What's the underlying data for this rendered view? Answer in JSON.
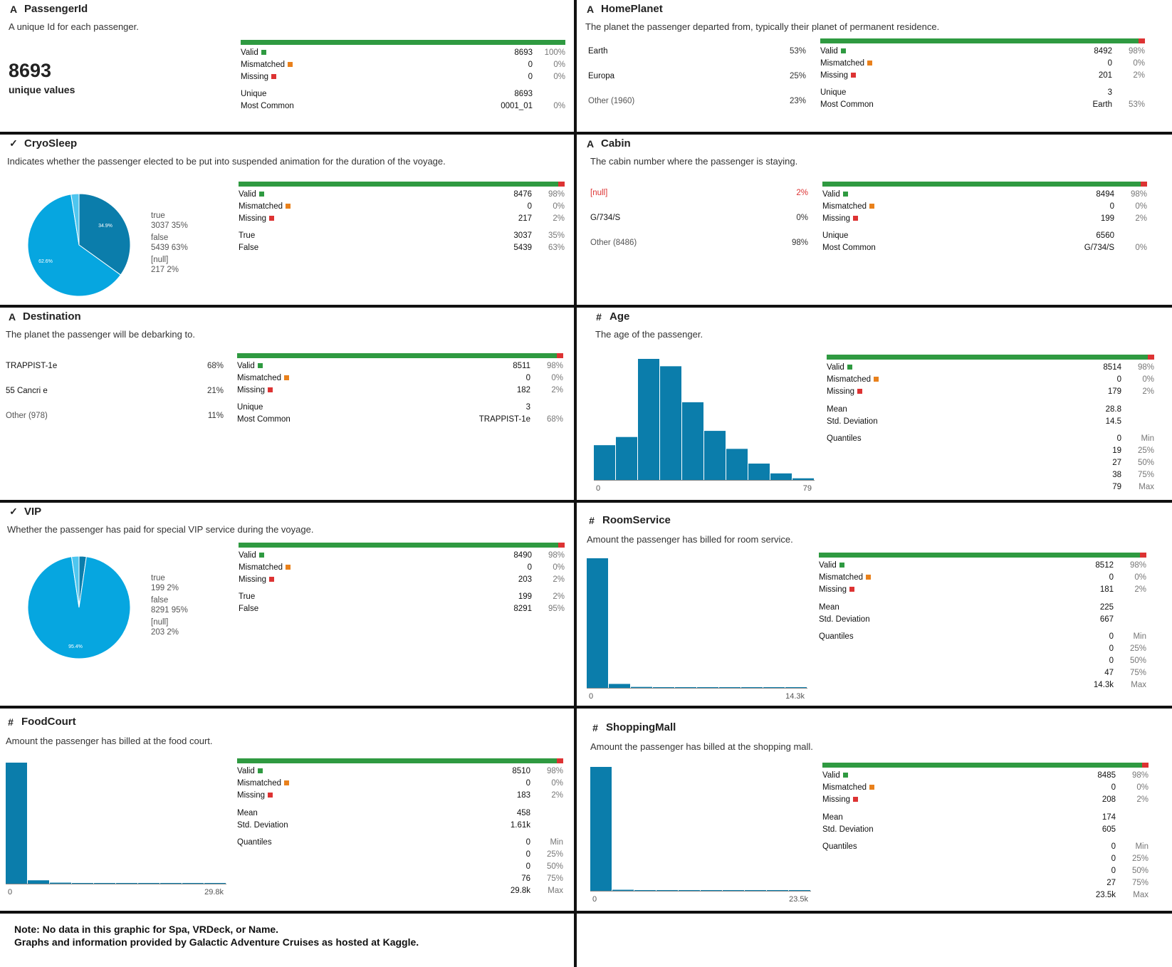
{
  "colors": {
    "valid": "#2f9a41",
    "mismatched": "#e9811c",
    "missing": "#dd3333",
    "hist": "#0b7dab",
    "pie_dark": "#0b7dab",
    "pie_light": "#06a6e0"
  },
  "labels": {
    "valid": "Valid",
    "mismatched": "Mismatched",
    "missing": "Missing",
    "unique": "Unique",
    "most_common": "Most Common",
    "mean": "Mean",
    "std": "Std. Deviation",
    "quantiles": "Quantiles",
    "true": "True",
    "false": "False"
  },
  "cards": {
    "passengerid": {
      "icon": "A",
      "title": "PassengerId",
      "desc": "A unique Id for each passenger.",
      "big": "8693",
      "big_sub": "unique values",
      "valid": "8693",
      "valid_pct": "100%",
      "mismatched": "0",
      "mismatched_pct": "0%",
      "missing": "0",
      "missing_pct": "0%",
      "unique": "8693",
      "most_common": "0001_01",
      "most_common_pct": "0%",
      "valid_fraction": 1.0
    },
    "homeplanet": {
      "icon": "A",
      "title": "HomePlanet",
      "desc": "The planet the passenger departed from, typically their planet of permanent residence.",
      "categories": [
        {
          "label": "Earth",
          "pct": "53%"
        },
        {
          "label": "Europa",
          "pct": "25%"
        },
        {
          "label": "Other (1960)",
          "pct": "23%"
        }
      ],
      "valid": "8492",
      "valid_pct": "98%",
      "mismatched": "0",
      "mismatched_pct": "0%",
      "missing": "201",
      "missing_pct": "2%",
      "unique": "3",
      "most_common": "Earth",
      "most_common_pct": "53%",
      "valid_fraction": 0.98
    },
    "cryosleep": {
      "icon": "✓",
      "title": "CryoSleep",
      "desc": "Indicates whether the passenger elected to be put into suspended animation for the duration of the voyage.",
      "legend": [
        {
          "label": "true",
          "value": "3037  35%"
        },
        {
          "label": "false",
          "value": "5439  63%"
        },
        {
          "label": "[null]",
          "value": "217  2%"
        }
      ],
      "pie_labels": [
        "34.9%",
        "62.6%"
      ],
      "valid": "8476",
      "valid_pct": "98%",
      "mismatched": "0",
      "mismatched_pct": "0%",
      "missing": "217",
      "missing_pct": "2%",
      "true_count": "3037",
      "true_pct": "35%",
      "false_count": "5439",
      "false_pct": "63%",
      "valid_fraction": 0.98
    },
    "cabin": {
      "icon": "A",
      "title": "Cabin",
      "desc": "The cabin number where the passenger is staying.",
      "categories": [
        {
          "label": "[null]",
          "pct": "2%"
        },
        {
          "label": "G/734/S",
          "pct": "0%"
        },
        {
          "label": "Other (8486)",
          "pct": "98%"
        }
      ],
      "valid": "8494",
      "valid_pct": "98%",
      "mismatched": "0",
      "mismatched_pct": "0%",
      "missing": "199",
      "missing_pct": "2%",
      "unique": "6560",
      "most_common": "G/734/S",
      "most_common_pct": "0%",
      "valid_fraction": 0.98
    },
    "destination": {
      "icon": "A",
      "title": "Destination",
      "desc": "The planet the passenger will be debarking to.",
      "categories": [
        {
          "label": "TRAPPIST-1e",
          "pct": "68%"
        },
        {
          "label": "55 Cancri e",
          "pct": "21%"
        },
        {
          "label": "Other (978)",
          "pct": "11%"
        }
      ],
      "valid": "8511",
      "valid_pct": "98%",
      "mismatched": "0",
      "mismatched_pct": "0%",
      "missing": "182",
      "missing_pct": "2%",
      "unique": "3",
      "most_common": "TRAPPIST-1e",
      "most_common_pct": "68%",
      "valid_fraction": 0.98
    },
    "age": {
      "icon": "#",
      "title": "Age",
      "desc": "The age of the passenger.",
      "valid": "8514",
      "valid_pct": "98%",
      "mismatched": "0",
      "mismatched_pct": "0%",
      "missing": "179",
      "missing_pct": "2%",
      "mean": "28.8",
      "std": "14.5",
      "quantiles": [
        {
          "v": "0",
          "l": "Min"
        },
        {
          "v": "19",
          "l": "25%"
        },
        {
          "v": "27",
          "l": "50%"
        },
        {
          "v": "38",
          "l": "75%"
        },
        {
          "v": "79",
          "l": "Max"
        }
      ],
      "axis_min": "0",
      "axis_max": "79",
      "valid_fraction": 0.98
    },
    "vip": {
      "icon": "✓",
      "title": "VIP",
      "desc": "Whether the passenger has paid for special VIP service during the voyage.",
      "legend": [
        {
          "label": "true",
          "value": "199  2%"
        },
        {
          "label": "false",
          "value": "8291  95%"
        },
        {
          "label": "[null]",
          "value": "203  2%"
        }
      ],
      "pie_labels": [
        "95.4%"
      ],
      "valid": "8490",
      "valid_pct": "98%",
      "mismatched": "0",
      "mismatched_pct": "0%",
      "missing": "203",
      "missing_pct": "2%",
      "true_count": "199",
      "true_pct": "2%",
      "false_count": "8291",
      "false_pct": "95%",
      "valid_fraction": 0.98
    },
    "roomservice": {
      "icon": "#",
      "title": "RoomService",
      "desc": "Amount the passenger has billed for room service.",
      "valid": "8512",
      "valid_pct": "98%",
      "mismatched": "0",
      "mismatched_pct": "0%",
      "missing": "181",
      "missing_pct": "2%",
      "mean": "225",
      "std": "667",
      "quantiles": [
        {
          "v": "0",
          "l": "Min"
        },
        {
          "v": "0",
          "l": "25%"
        },
        {
          "v": "0",
          "l": "50%"
        },
        {
          "v": "47",
          "l": "75%"
        },
        {
          "v": "14.3k",
          "l": "Max"
        }
      ],
      "axis_min": "0",
      "axis_max": "14.3k",
      "valid_fraction": 0.98
    },
    "foodcourt": {
      "icon": "#",
      "title": "FoodCourt",
      "desc": "Amount the passenger has billed at the food court.",
      "valid": "8510",
      "valid_pct": "98%",
      "mismatched": "0",
      "mismatched_pct": "0%",
      "missing": "183",
      "missing_pct": "2%",
      "mean": "458",
      "std": "1.61k",
      "quantiles": [
        {
          "v": "0",
          "l": "Min"
        },
        {
          "v": "0",
          "l": "25%"
        },
        {
          "v": "0",
          "l": "50%"
        },
        {
          "v": "76",
          "l": "75%"
        },
        {
          "v": "29.8k",
          "l": "Max"
        }
      ],
      "axis_min": "0",
      "axis_max": "29.8k",
      "valid_fraction": 0.98
    },
    "shoppingmall": {
      "icon": "#",
      "title": "ShoppingMall",
      "desc": "Amount the passenger has billed at the shopping mall.",
      "valid": "8485",
      "valid_pct": "98%",
      "mismatched": "0",
      "mismatched_pct": "0%",
      "missing": "208",
      "missing_pct": "2%",
      "mean": "174",
      "std": "605",
      "quantiles": [
        {
          "v": "0",
          "l": "Min"
        },
        {
          "v": "0",
          "l": "25%"
        },
        {
          "v": "0",
          "l": "50%"
        },
        {
          "v": "27",
          "l": "75%"
        },
        {
          "v": "23.5k",
          "l": "Max"
        }
      ],
      "axis_min": "0",
      "axis_max": "23.5k",
      "valid_fraction": 0.98
    }
  },
  "note": {
    "line1": "Note: No data in this graphic for Spa, VRDeck, or Name.",
    "line2": "Graphs and information provided by Galactic Adventure Cruises as hosted at Kaggle."
  },
  "chart_data": [
    {
      "type": "pie",
      "title": "CryoSleep",
      "categories": [
        "true",
        "false",
        "[null]"
      ],
      "values": [
        3037,
        5439,
        217
      ]
    },
    {
      "type": "pie",
      "title": "VIP",
      "categories": [
        "true",
        "false",
        "[null]"
      ],
      "values": [
        199,
        8291,
        203
      ]
    },
    {
      "type": "bar",
      "title": "Age",
      "xlim": [
        0,
        79
      ],
      "values": [
        850,
        1050,
        2960,
        2780,
        1900,
        1200,
        760,
        400,
        160,
        40
      ]
    },
    {
      "type": "bar",
      "title": "RoomService",
      "xlim": [
        0,
        14300
      ],
      "values": [
        8200,
        250,
        60,
        25,
        10,
        5,
        3,
        2,
        1,
        1
      ]
    },
    {
      "type": "bar",
      "title": "FoodCourt",
      "xlim": [
        0,
        29800
      ],
      "values": [
        8200,
        230,
        70,
        30,
        10,
        5,
        3,
        2,
        1,
        1
      ]
    },
    {
      "type": "bar",
      "title": "ShoppingMall",
      "xlim": [
        0,
        23500
      ],
      "values": [
        8300,
        70,
        20,
        10,
        5,
        3,
        2,
        1,
        1,
        1
      ]
    }
  ]
}
